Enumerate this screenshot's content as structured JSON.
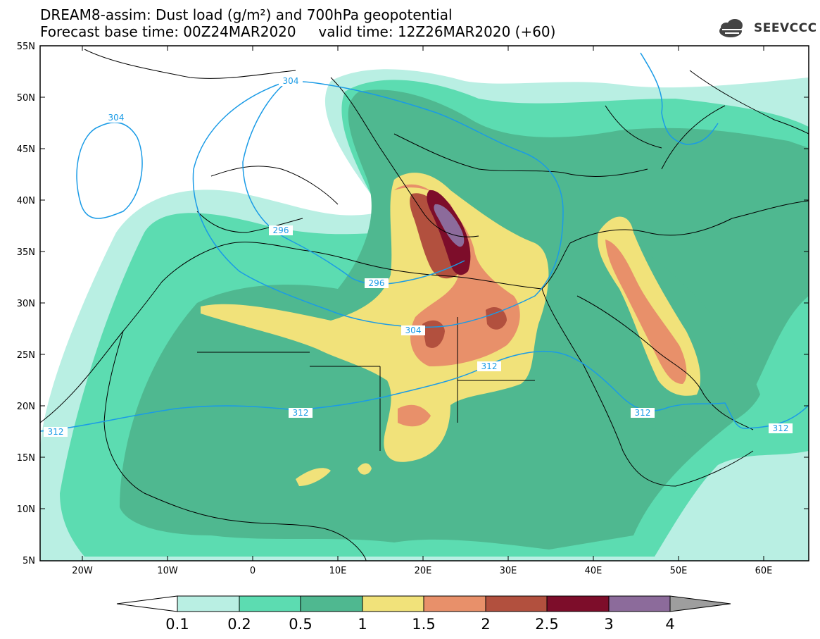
{
  "title_line1": "DREAM8-assim: Dust load (g/m²) and 700hPa geopotential",
  "title_line2": "Forecast base time: 00Z24MAR2020     valid time: 12Z26MAR2020 (+60)",
  "logo_text": "SEEVCCC",
  "map": {
    "lat_ticks": [
      "55N",
      "50N",
      "45N",
      "40N",
      "35N",
      "30N",
      "25N",
      "20N",
      "15N",
      "10N",
      "5N"
    ],
    "lon_ticks": [
      "20W",
      "10W",
      "0",
      "10E",
      "20E",
      "30E",
      "40E",
      "50E",
      "60E"
    ]
  },
  "contours": {
    "unit": "geopotential (dam)",
    "labels": [
      "304",
      "304",
      "296",
      "296",
      "304",
      "312",
      "312",
      "312",
      "312",
      "312"
    ]
  },
  "colorbar": {
    "levels": [
      "0.1",
      "0.2",
      "0.5",
      "1",
      "1.5",
      "2",
      "2.5",
      "3",
      "4"
    ],
    "colors": [
      "#b9efe3",
      "#5cdcb1",
      "#4fb890",
      "#f1e27a",
      "#e8906a",
      "#b2503e",
      "#7d0d2a",
      "#8c6b9b",
      "#9e9e9e"
    ],
    "under_color": "#ffffff"
  }
}
